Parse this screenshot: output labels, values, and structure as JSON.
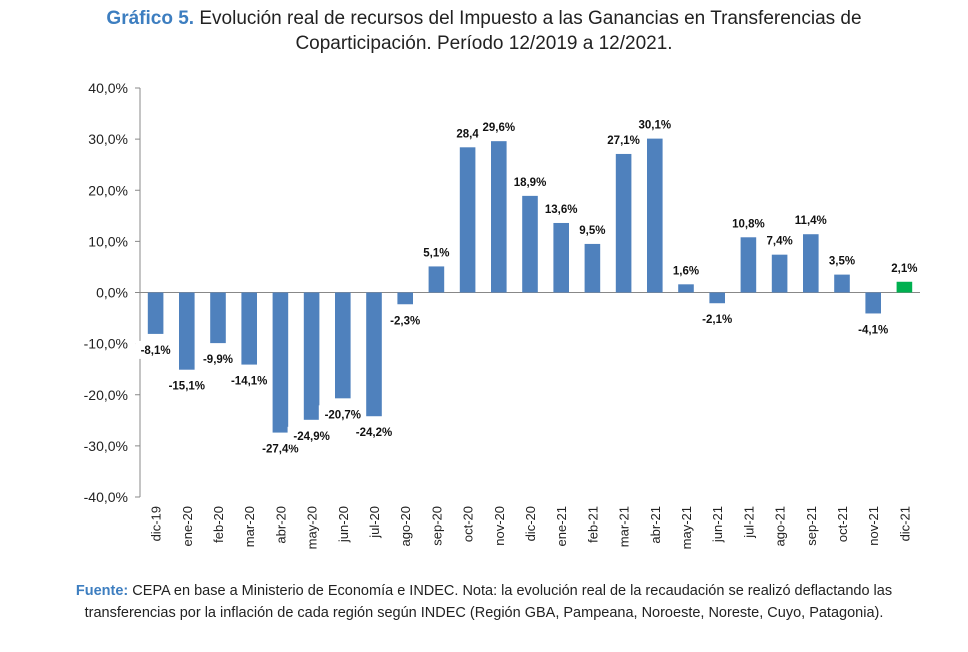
{
  "title": {
    "prefix": "Gráfico 5.",
    "text": "Evolución real de recursos del Impuesto a las Ganancias en Transferencias de Coparticipación. Período 12/2019 a 12/2021."
  },
  "source": {
    "prefix": "Fuente:",
    "text": "CEPA en base a Ministerio de Economía e INDEC. Nota: la evolución real de la recaudación se realizó deflactando las transferencias por la inflación de cada región según INDEC (Región GBA, Pampeana, Noroeste, Noreste, Cuyo, Patagonia)."
  },
  "colors": {
    "bar": "#4f81bd",
    "highlight": "#00b050",
    "title_accent": "#3d7ec0"
  },
  "chart_data": {
    "type": "bar",
    "categories": [
      "dic-19",
      "ene-20",
      "feb-20",
      "mar-20",
      "abr-20",
      "may-20",
      "jun-20",
      "jul-20",
      "ago-20",
      "sep-20",
      "oct-20",
      "nov-20",
      "dic-20",
      "ene-21",
      "feb-21",
      "mar-21",
      "abr-21",
      "may-21",
      "jun-21",
      "jul-21",
      "ago-21",
      "sep-21",
      "oct-21",
      "nov-21",
      "dic-21"
    ],
    "values": [
      -8.1,
      -15.1,
      -9.9,
      -14.1,
      -27.4,
      -24.9,
      -20.7,
      -24.2,
      -2.3,
      5.1,
      28.4,
      29.6,
      18.9,
      13.6,
      9.5,
      27.1,
      30.1,
      1.6,
      -2.1,
      10.8,
      7.4,
      11.4,
      3.5,
      -4.1,
      2.1
    ],
    "labels": [
      "-8,1%",
      "-15,1%",
      "-9,9%",
      "-14,1%",
      "-27,4%",
      "-24,9%",
      "-20,7%",
      "-24,2%",
      "-2,3%",
      "5,1%",
      "28,4",
      "29,6%",
      "18,9%",
      "13,6%",
      "9,5%",
      "27,1%",
      "30,1%",
      "1,6%",
      "-2,1%",
      "10,8%",
      "7,4%",
      "11,4%",
      "3,5%",
      "-4,1%",
      "2,1%"
    ],
    "highlight_index": 24,
    "ylim": [
      -40,
      40
    ],
    "yticks": [
      40,
      30,
      20,
      10,
      0,
      -10,
      -20,
      -30,
      -40
    ],
    "ytick_labels": [
      "40,0%",
      "30,0%",
      "20,0%",
      "10,0%",
      "0,0%",
      "-10,0%",
      "-20,0%",
      "-30,0%",
      "-40,0%"
    ],
    "grid": false,
    "legend": "none"
  }
}
